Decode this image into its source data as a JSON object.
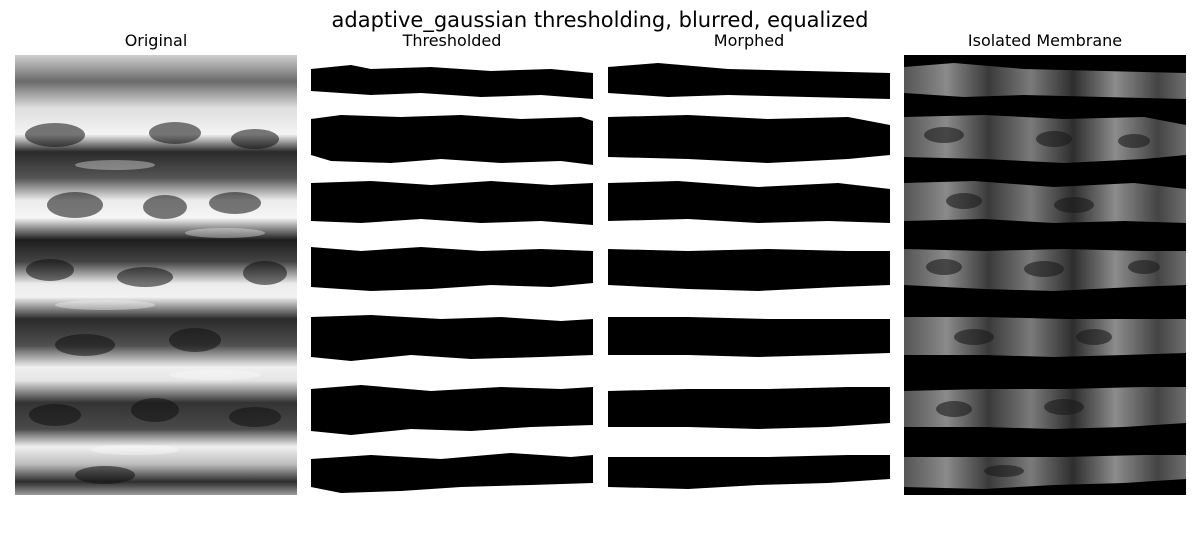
{
  "figure": {
    "title": "adaptive_gaussian thresholding, blurred, equalized"
  },
  "panels": [
    {
      "title": "Original",
      "content": "grayscale-membrane-micrograph"
    },
    {
      "title": "Thresholded",
      "content": "binary-threshold-mask"
    },
    {
      "title": "Morphed",
      "content": "morphological-cleaned-mask"
    },
    {
      "title": "Isolated Membrane",
      "content": "masked-grayscale-membrane"
    }
  ],
  "colors": {
    "background": "#ffffff",
    "foreground": "#000000"
  }
}
